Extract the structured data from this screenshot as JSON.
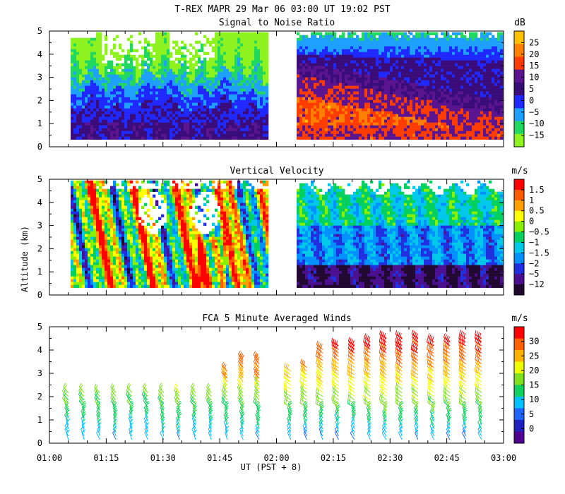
{
  "figure": {
    "title": "T-REX   MAPR 29 Mar 06   03:00 UT   19:02   PST",
    "ylabel": "Altitude (km)",
    "xlabel": "UT  (PST + 8)",
    "x_tick_labels": [
      "01:00",
      "01:15",
      "01:30",
      "01:45",
      "02:00",
      "02:15",
      "02:30",
      "02:45",
      "03:00"
    ],
    "y_tick_labels": [
      "0",
      "1",
      "2",
      "3",
      "4",
      "5"
    ]
  },
  "chart_data": [
    {
      "type": "heatmap",
      "title": "Signal to Noise Ratio",
      "xlabel": "UT  (PST + 8)",
      "ylabel": "Altitude (km)",
      "xlim": [
        "01:00",
        "03:00"
      ],
      "ylim": [
        0,
        5
      ],
      "x_ticks": [
        "01:00",
        "01:15",
        "01:30",
        "01:45",
        "02:00",
        "02:15",
        "02:30",
        "02:45",
        "03:00"
      ],
      "y_ticks": [
        0,
        1,
        2,
        3,
        4,
        5
      ],
      "data_gap": [
        "01:58",
        "02:05"
      ],
      "colorbar": {
        "unit": "dB",
        "levels": [
          "25",
          "20",
          "15",
          "10",
          "5",
          "0",
          "−5",
          "−10",
          "−15"
        ],
        "colors": [
          "#ffc000",
          "#ff8000",
          "#ff3c00",
          "#5a1490",
          "#3a0c7a",
          "#1e28ff",
          "#1ea0ff",
          "#20d860",
          "#8ef21e"
        ]
      }
    },
    {
      "type": "heatmap",
      "title": "Vertical Velocity",
      "xlabel": "UT  (PST + 8)",
      "ylabel": "Altitude (km)",
      "xlim": [
        "01:00",
        "03:00"
      ],
      "ylim": [
        0,
        5
      ],
      "x_ticks": [
        "01:00",
        "01:15",
        "01:30",
        "01:45",
        "02:00",
        "02:15",
        "02:30",
        "02:45",
        "03:00"
      ],
      "y_ticks": [
        0,
        1,
        2,
        3,
        4,
        5
      ],
      "data_gap": [
        "01:58",
        "02:05"
      ],
      "colorbar": {
        "unit": "m/s",
        "levels": [
          "1.5",
          "1",
          "0.5",
          "0",
          "−0.5",
          "−1",
          "−1.5",
          "−2",
          "−5",
          "−12"
        ],
        "colors": [
          "#ff0000",
          "#ff5a00",
          "#ffa000",
          "#ffff00",
          "#88f000",
          "#00d060",
          "#00c8e8",
          "#0090ff",
          "#2030e0",
          "#4a1090",
          "#200830"
        ]
      }
    },
    {
      "type": "scatter",
      "title": "FCA 5 Minute Averaged Winds",
      "xlabel": "UT  (PST + 8)",
      "ylabel": "Altitude (km)",
      "xlim": [
        "01:00",
        "03:00"
      ],
      "ylim": [
        0,
        5
      ],
      "x_ticks": [
        "01:00",
        "01:15",
        "01:30",
        "01:45",
        "02:00",
        "02:15",
        "02:30",
        "02:45",
        "03:00"
      ],
      "y_ticks": [
        0,
        1,
        2,
        3,
        4,
        5
      ],
      "marker": "wind barbs",
      "colorbar": {
        "unit": "m/s",
        "levels": [
          "30",
          "25",
          "20",
          "15",
          "10",
          "5",
          "0"
        ],
        "colors": [
          "#ff0000",
          "#ff6000",
          "#ffb000",
          "#f0ff00",
          "#80e020",
          "#10d060",
          "#00c0ff",
          "#1e64ff",
          "#2020c0",
          "#500090"
        ]
      }
    }
  ]
}
